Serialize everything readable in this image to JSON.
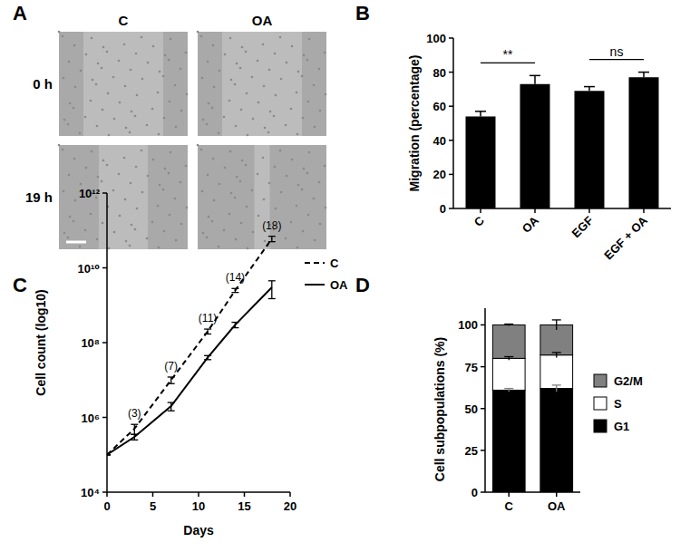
{
  "chart_data": [
    {
      "type": "bar",
      "categories": [
        "C",
        "OA",
        "EGF",
        "EGF + OA"
      ],
      "values": [
        54,
        73,
        69,
        77
      ],
      "errors": [
        3,
        5,
        2.5,
        3
      ],
      "color": "#000000",
      "y_label": "Migration (percentage)",
      "ylim": [
        0,
        100
      ],
      "yticks": [
        0,
        20,
        40,
        60,
        80,
        100
      ],
      "annotations": [
        {
          "text": "**",
          "from": "C",
          "to": "OA"
        },
        {
          "text": "ns",
          "from": "EGF",
          "to": "EGF + OA"
        }
      ]
    },
    {
      "type": "line",
      "log": "y",
      "x": [
        0,
        3,
        7,
        11,
        14,
        18
      ],
      "series": [
        {
          "name": "C",
          "color": "#000000",
          "line_style": "dashed",
          "values": [
            100000,
            500000,
            10000000,
            200000000,
            2500000000,
            60000000000
          ],
          "errors": [
            0,
            150000,
            2000000,
            30000000,
            300000000,
            10000000000
          ]
        },
        {
          "name": "OA",
          "color": "#000000",
          "line_style": "solid",
          "values": [
            100000,
            300000,
            2000000,
            40000000,
            300000000,
            3000000000
          ],
          "errors": [
            0,
            50000,
            500000,
            5000000,
            50000000,
            1500000000
          ]
        }
      ],
      "x_label": "Days",
      "y_label": "Cell count (log10)",
      "xlim": [
        0,
        20
      ],
      "xticks": [
        0,
        5,
        10,
        15,
        20
      ],
      "ylim": [
        10000,
        1000000000000
      ],
      "yticks": [
        {
          "value": 10000,
          "label": "10⁴"
        },
        {
          "value": 1000000,
          "label": "10⁶"
        },
        {
          "value": 100000000,
          "label": "10⁸"
        },
        {
          "value": 10000000000,
          "label": "10¹⁰"
        },
        {
          "value": 1000000000000,
          "label": "10¹²"
        }
      ],
      "legend": "right",
      "annotations": [
        {
          "x": 3,
          "text": "(3)"
        },
        {
          "x": 7,
          "text": "(7)"
        },
        {
          "x": 11,
          "text": "(11)"
        },
        {
          "x": 14,
          "text": "(14)"
        },
        {
          "x": 18,
          "text": "(18)"
        }
      ]
    },
    {
      "type": "bar",
      "stacked": true,
      "categories": [
        "C",
        "OA"
      ],
      "series": [
        {
          "name": "G1",
          "color": "#000000",
          "values": [
            61,
            62
          ],
          "errors": [
            1,
            2
          ]
        },
        {
          "name": "S",
          "color": "#ffffff",
          "values": [
            19,
            20
          ],
          "errors": [
            1,
            1.5
          ]
        },
        {
          "name": "G2/M",
          "color": "#808080",
          "values": [
            20,
            18
          ],
          "errors": [
            0.5,
            3
          ]
        }
      ],
      "y_label": "Cell subpopulations (%)",
      "ylim": [
        0,
        110
      ],
      "yticks": [
        0,
        25,
        50,
        75,
        100
      ],
      "legend": "right"
    }
  ],
  "figure": {
    "panel_labels": [
      "A",
      "B",
      "C",
      "D"
    ],
    "image_columns": [
      "C",
      "OA"
    ],
    "image_rows": [
      "0 h",
      "19 h"
    ]
  }
}
